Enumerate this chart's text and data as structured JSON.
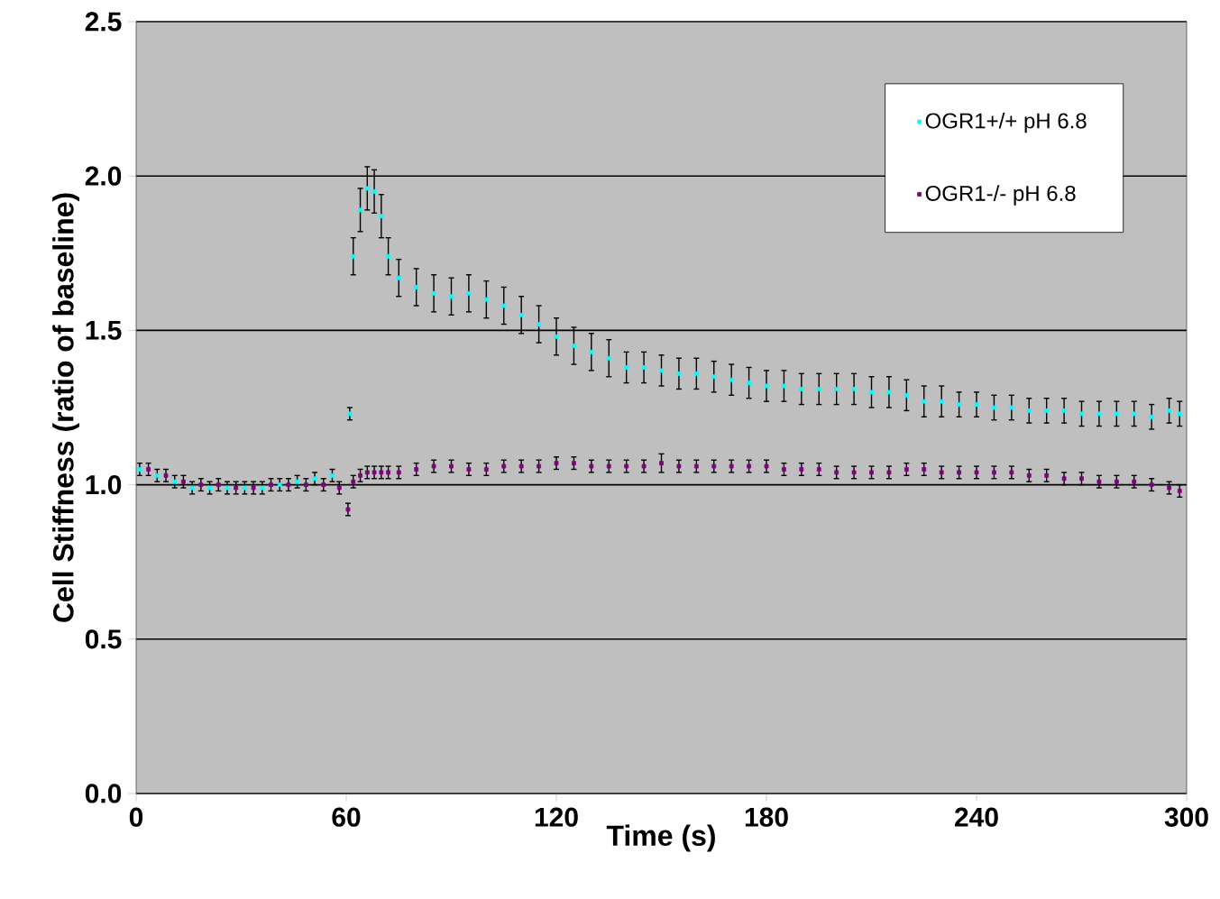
{
  "chart_data": {
    "type": "scatter",
    "xlabel": "Time (s)",
    "ylabel": "Cell Stiffness (ratio of baseline)",
    "series": [
      {
        "name": "OGR1+/+ pH 6.8",
        "color": "#00ffff",
        "x": [
          1,
          6,
          11,
          16,
          21,
          26,
          31,
          36,
          41,
          46,
          51,
          56,
          61,
          62,
          64,
          66,
          68,
          70,
          72,
          75,
          80,
          85,
          90,
          95,
          100,
          105,
          110,
          115,
          120,
          125,
          130,
          135,
          140,
          145,
          150,
          155,
          160,
          165,
          170,
          175,
          180,
          185,
          190,
          195,
          200,
          205,
          210,
          215,
          220,
          225,
          230,
          235,
          240,
          245,
          250,
          255,
          260,
          265,
          270,
          275,
          280,
          285,
          290,
          295,
          298
        ],
        "values": [
          1.05,
          1.03,
          1.01,
          0.99,
          0.99,
          0.99,
          0.99,
          0.99,
          1.0,
          1.01,
          1.02,
          1.03,
          1.23,
          1.74,
          1.89,
          1.96,
          1.95,
          1.87,
          1.74,
          1.67,
          1.64,
          1.62,
          1.61,
          1.62,
          1.6,
          1.58,
          1.55,
          1.52,
          1.48,
          1.45,
          1.43,
          1.41,
          1.38,
          1.38,
          1.37,
          1.36,
          1.36,
          1.35,
          1.34,
          1.33,
          1.32,
          1.32,
          1.31,
          1.31,
          1.31,
          1.31,
          1.3,
          1.3,
          1.29,
          1.27,
          1.27,
          1.26,
          1.26,
          1.25,
          1.25,
          1.24,
          1.24,
          1.24,
          1.23,
          1.23,
          1.23,
          1.23,
          1.22,
          1.24,
          1.23
        ],
        "errors": [
          0.02,
          0.02,
          0.02,
          0.02,
          0.02,
          0.02,
          0.02,
          0.02,
          0.02,
          0.02,
          0.02,
          0.02,
          0.02,
          0.06,
          0.07,
          0.07,
          0.07,
          0.07,
          0.06,
          0.06,
          0.06,
          0.06,
          0.06,
          0.06,
          0.06,
          0.06,
          0.06,
          0.06,
          0.06,
          0.06,
          0.06,
          0.06,
          0.05,
          0.05,
          0.05,
          0.05,
          0.05,
          0.05,
          0.05,
          0.05,
          0.05,
          0.05,
          0.05,
          0.05,
          0.05,
          0.05,
          0.05,
          0.05,
          0.05,
          0.05,
          0.05,
          0.04,
          0.04,
          0.04,
          0.04,
          0.04,
          0.04,
          0.04,
          0.04,
          0.04,
          0.04,
          0.04,
          0.04,
          0.04,
          0.04
        ]
      },
      {
        "name": "OGR1-/- pH 6.8",
        "color": "#800080",
        "x": [
          3.5,
          8.5,
          13.5,
          18.5,
          23.5,
          28.5,
          33.5,
          38.5,
          43.5,
          48.5,
          53.5,
          58,
          60.5,
          62,
          64,
          66,
          68,
          70,
          72,
          75,
          80,
          85,
          90,
          95,
          100,
          105,
          110,
          115,
          120,
          125,
          130,
          135,
          140,
          145,
          150,
          155,
          160,
          165,
          170,
          175,
          180,
          185,
          190,
          195,
          200,
          205,
          210,
          215,
          220,
          225,
          230,
          235,
          240,
          245,
          250,
          255,
          260,
          265,
          270,
          275,
          280,
          285,
          290,
          295,
          298
        ],
        "values": [
          1.05,
          1.03,
          1.01,
          1.0,
          1.0,
          0.99,
          0.99,
          1.0,
          1.0,
          1.0,
          1.0,
          0.99,
          0.92,
          1.01,
          1.03,
          1.04,
          1.04,
          1.04,
          1.04,
          1.04,
          1.05,
          1.06,
          1.06,
          1.05,
          1.05,
          1.06,
          1.06,
          1.06,
          1.07,
          1.07,
          1.06,
          1.06,
          1.06,
          1.06,
          1.07,
          1.06,
          1.06,
          1.06,
          1.06,
          1.06,
          1.06,
          1.05,
          1.05,
          1.05,
          1.04,
          1.04,
          1.04,
          1.04,
          1.05,
          1.05,
          1.04,
          1.04,
          1.04,
          1.04,
          1.04,
          1.03,
          1.03,
          1.02,
          1.02,
          1.01,
          1.01,
          1.01,
          1.0,
          0.99,
          0.98
        ],
        "errors": [
          0.02,
          0.02,
          0.02,
          0.02,
          0.02,
          0.02,
          0.02,
          0.02,
          0.02,
          0.02,
          0.02,
          0.02,
          0.02,
          0.02,
          0.02,
          0.02,
          0.02,
          0.02,
          0.02,
          0.02,
          0.02,
          0.02,
          0.02,
          0.02,
          0.02,
          0.02,
          0.02,
          0.02,
          0.02,
          0.02,
          0.02,
          0.02,
          0.02,
          0.02,
          0.03,
          0.02,
          0.02,
          0.02,
          0.02,
          0.02,
          0.02,
          0.02,
          0.02,
          0.02,
          0.02,
          0.02,
          0.02,
          0.02,
          0.02,
          0.02,
          0.02,
          0.02,
          0.02,
          0.02,
          0.02,
          0.02,
          0.02,
          0.02,
          0.02,
          0.02,
          0.02,
          0.02,
          0.02,
          0.02,
          0.02
        ]
      }
    ],
    "xlim": [
      0,
      300
    ],
    "xticks": [
      0,
      60,
      120,
      180,
      240,
      300
    ],
    "ylim": [
      0,
      2.5
    ],
    "yticks": [
      {
        "value": 0,
        "label": "0.0"
      },
      {
        "value": 0.5,
        "label": "0.5"
      },
      {
        "value": 1,
        "label": "1.0"
      },
      {
        "value": 1.5,
        "label": "1.5"
      },
      {
        "value": 2,
        "label": "2.0"
      },
      {
        "value": 2.5,
        "label": "2.5"
      }
    ],
    "grid": "y",
    "legend": "top right",
    "marker": "square"
  }
}
